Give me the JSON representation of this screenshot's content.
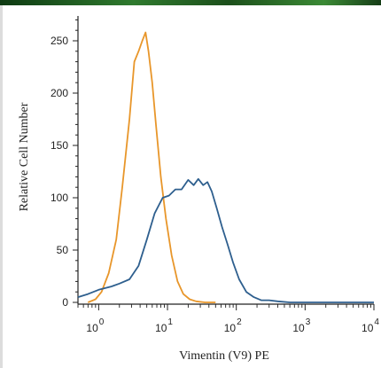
{
  "chart_data": {
    "type": "line",
    "xlabel": "Vimentin (V9) PE",
    "ylabel": "Relative Cell Number",
    "x_scale": "log",
    "xlim": [
      0.5,
      10000
    ],
    "ylim": [
      0,
      275
    ],
    "y_ticks": [
      0,
      50,
      100,
      150,
      200,
      250
    ],
    "x_ticks": [
      {
        "value": 1,
        "base": "10",
        "exp": "0"
      },
      {
        "value": 10,
        "base": "10",
        "exp": "1"
      },
      {
        "value": 100,
        "base": "10",
        "exp": "2"
      },
      {
        "value": 1000,
        "base": "10",
        "exp": "3"
      },
      {
        "value": 10000,
        "base": "10",
        "exp": "4"
      }
    ],
    "grid": false,
    "series": [
      {
        "color": "#e8962a",
        "x": [
          0.7,
          0.9,
          1.1,
          1.4,
          1.8,
          2.2,
          2.8,
          3.3,
          3.8,
          4.3,
          4.8,
          5.3,
          6.0,
          6.8,
          8.0,
          9.5,
          11.5,
          14,
          17,
          21,
          26,
          35,
          50
        ],
        "y": [
          0,
          3,
          10,
          28,
          60,
          110,
          175,
          230,
          240,
          250,
          258,
          240,
          210,
          170,
          120,
          80,
          45,
          20,
          8,
          3,
          1,
          0,
          0
        ]
      },
      {
        "color": "#2e5f8e",
        "x": [
          0.5,
          0.7,
          1.0,
          1.5,
          2.0,
          2.8,
          3.8,
          5.0,
          6.5,
          8.5,
          10.5,
          13,
          16,
          20,
          24,
          28,
          33,
          38,
          44,
          52,
          62,
          75,
          90,
          110,
          140,
          180,
          230,
          300,
          400,
          600,
          1000,
          3000,
          10000
        ],
        "y": [
          5,
          8,
          12,
          15,
          18,
          22,
          35,
          60,
          85,
          100,
          102,
          108,
          108,
          117,
          112,
          118,
          112,
          115,
          106,
          90,
          72,
          55,
          38,
          22,
          10,
          5,
          2,
          2,
          1,
          0,
          0,
          0,
          0
        ]
      }
    ]
  }
}
